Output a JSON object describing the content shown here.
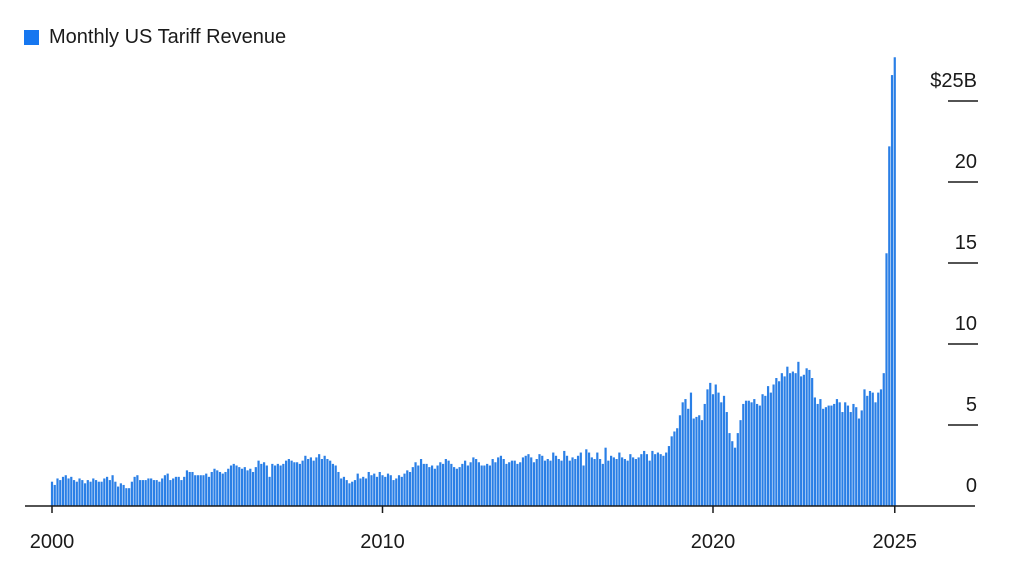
{
  "chart_data": {
    "type": "bar",
    "title": "",
    "xlabel": "",
    "ylabel": "",
    "legend": [
      {
        "name": "Monthly US Tariff Revenue",
        "color": "#1677f0"
      }
    ],
    "legend_placement": "top-left",
    "bar_color": "#2a7fe6",
    "start": "2000-01",
    "frequency": "monthly",
    "units": "billion USD",
    "ylim": [
      0,
      28
    ],
    "yticks": [
      0,
      5,
      10,
      15,
      20,
      25
    ],
    "ytick_labels": [
      "0",
      "5",
      "10",
      "15",
      "20",
      "$25B"
    ],
    "xticks": [
      2000,
      2010,
      2020,
      2025
    ],
    "xtick_labels": [
      "2000",
      "2010",
      "2020",
      "2025"
    ],
    "grid": false,
    "series": [
      {
        "name": "Monthly US Tariff Revenue",
        "values": [
          1.5,
          1.3,
          1.7,
          1.6,
          1.8,
          1.9,
          1.7,
          1.8,
          1.6,
          1.5,
          1.7,
          1.6,
          1.4,
          1.6,
          1.5,
          1.7,
          1.6,
          1.5,
          1.5,
          1.7,
          1.8,
          1.6,
          1.9,
          1.5,
          1.2,
          1.4,
          1.3,
          1.1,
          1.1,
          1.5,
          1.8,
          1.9,
          1.6,
          1.6,
          1.6,
          1.7,
          1.7,
          1.6,
          1.6,
          1.5,
          1.7,
          1.9,
          2.0,
          1.6,
          1.7,
          1.8,
          1.8,
          1.6,
          1.8,
          2.2,
          2.1,
          2.1,
          1.9,
          1.9,
          1.9,
          1.9,
          2.0,
          1.8,
          2.1,
          2.3,
          2.2,
          2.1,
          2.0,
          2.1,
          2.3,
          2.5,
          2.6,
          2.5,
          2.4,
          2.3,
          2.4,
          2.2,
          2.3,
          2.1,
          2.4,
          2.8,
          2.6,
          2.7,
          2.5,
          1.8,
          2.6,
          2.5,
          2.6,
          2.5,
          2.6,
          2.8,
          2.9,
          2.8,
          2.7,
          2.7,
          2.6,
          2.8,
          3.1,
          2.9,
          3.0,
          2.8,
          3.0,
          3.2,
          2.9,
          3.1,
          2.9,
          2.8,
          2.6,
          2.5,
          2.1,
          1.7,
          1.8,
          1.6,
          1.4,
          1.5,
          1.6,
          2.0,
          1.7,
          1.8,
          1.7,
          2.1,
          1.9,
          2.0,
          1.8,
          2.1,
          1.9,
          1.8,
          2.0,
          1.9,
          1.6,
          1.7,
          1.9,
          1.8,
          2.0,
          2.2,
          2.1,
          2.4,
          2.7,
          2.5,
          2.9,
          2.6,
          2.6,
          2.4,
          2.5,
          2.3,
          2.5,
          2.7,
          2.6,
          2.9,
          2.8,
          2.6,
          2.4,
          2.3,
          2.4,
          2.6,
          2.8,
          2.5,
          2.7,
          3.0,
          2.9,
          2.7,
          2.5,
          2.5,
          2.6,
          2.5,
          2.9,
          2.7,
          3.0,
          3.1,
          2.9,
          2.6,
          2.7,
          2.8,
          2.8,
          2.6,
          2.7,
          3.0,
          3.1,
          3.2,
          3.0,
          2.7,
          2.9,
          3.2,
          3.1,
          2.8,
          2.9,
          2.8,
          3.3,
          3.1,
          2.9,
          2.8,
          3.4,
          3.1,
          2.8,
          3.0,
          2.9,
          3.1,
          3.3,
          2.5,
          3.5,
          3.3,
          3.0,
          2.9,
          3.3,
          2.9,
          2.6,
          3.6,
          2.8,
          3.1,
          3.0,
          2.9,
          3.3,
          3.0,
          2.9,
          2.8,
          3.2,
          3.0,
          2.9,
          3.0,
          3.2,
          3.4,
          3.2,
          2.8,
          3.4,
          3.2,
          3.3,
          3.2,
          3.1,
          3.3,
          3.7,
          4.3,
          4.6,
          4.8,
          5.6,
          6.4,
          6.6,
          6.0,
          7.0,
          5.4,
          5.5,
          5.6,
          5.3,
          6.3,
          7.2,
          7.6,
          6.9,
          7.5,
          7.0,
          6.4,
          6.8,
          5.8,
          4.5,
          4.0,
          3.6,
          4.5,
          5.3,
          6.3,
          6.5,
          6.5,
          6.4,
          6.6,
          6.3,
          6.2,
          6.9,
          6.8,
          7.4,
          7.0,
          7.5,
          7.9,
          7.7,
          8.2,
          8.0,
          8.6,
          8.2,
          8.3,
          8.2,
          8.9,
          8.0,
          8.1,
          8.5,
          8.4,
          7.9,
          6.7,
          6.3,
          6.6,
          6.0,
          6.1,
          6.2,
          6.2,
          6.3,
          6.6,
          6.4,
          5.8,
          6.4,
          6.2,
          5.8,
          6.3,
          6.1,
          5.4,
          5.9,
          7.2,
          6.8,
          7.1,
          7.0,
          6.4,
          7.0,
          7.2,
          8.2,
          15.6,
          22.2,
          26.6,
          27.7
        ]
      }
    ]
  }
}
